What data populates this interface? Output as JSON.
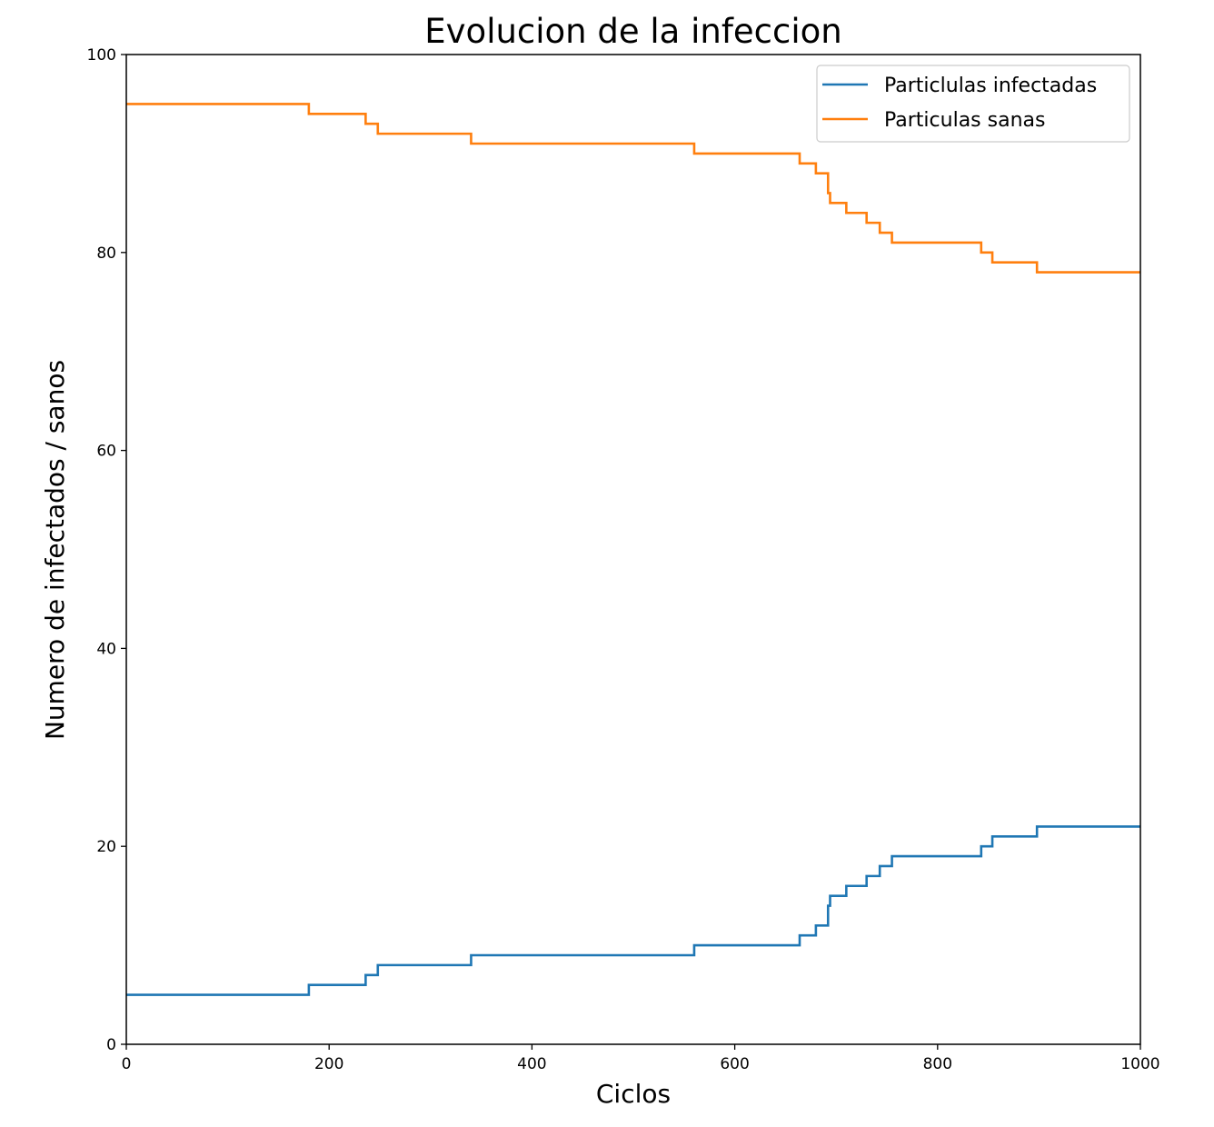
{
  "chart_data": {
    "type": "line",
    "title": "Evolucion de la infeccion",
    "xlabel": "Ciclos",
    "ylabel": "Numero de infectados / sanos",
    "xlim": [
      0,
      1000
    ],
    "ylim": [
      0,
      100
    ],
    "xticks": [
      0,
      200,
      400,
      600,
      800,
      1000
    ],
    "yticks": [
      0,
      20,
      40,
      60,
      80,
      100
    ],
    "grid": false,
    "legend_position": "top-right",
    "step": "post",
    "series": [
      {
        "name": "Particlulas infectadas",
        "color": "#1f77b4",
        "x": [
          0,
          180,
          236,
          248,
          340,
          560,
          664,
          680,
          692,
          694,
          696,
          710,
          730,
          743,
          755,
          843,
          854,
          898,
          1000
        ],
        "y": [
          5,
          6,
          7,
          8,
          9,
          10,
          11,
          12,
          14,
          15,
          15,
          16,
          17,
          18,
          19,
          20,
          21,
          22,
          22
        ]
      },
      {
        "name": "Particulas sanas",
        "color": "#ff7f0e",
        "x": [
          0,
          180,
          236,
          248,
          340,
          560,
          664,
          680,
          692,
          694,
          696,
          710,
          730,
          743,
          755,
          843,
          854,
          898,
          1000
        ],
        "y": [
          95,
          94,
          93,
          92,
          91,
          90,
          89,
          88,
          86,
          85,
          85,
          84,
          83,
          82,
          81,
          80,
          79,
          78,
          78
        ]
      }
    ]
  }
}
